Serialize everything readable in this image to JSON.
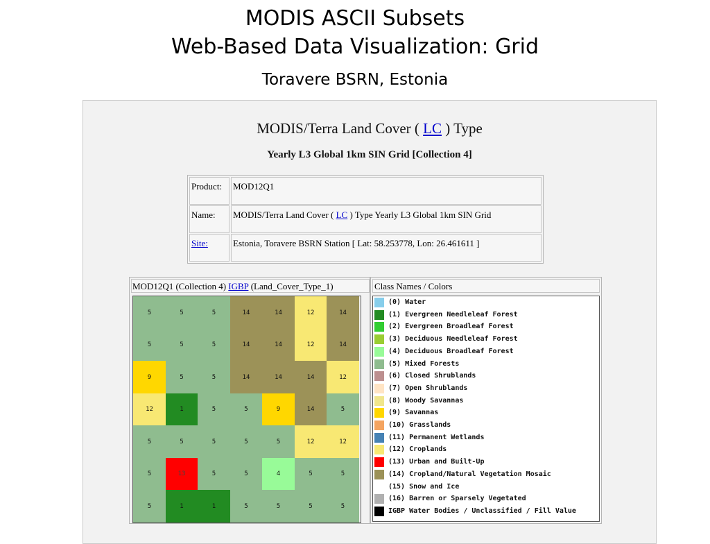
{
  "title_line1": "MODIS ASCII Subsets",
  "title_line2": "Web-Based Data Visualization:  Grid",
  "subtitle": "Toravere BSRN, Estonia",
  "heading": {
    "before": "MODIS/Terra Land Cover ( ",
    "link": "LC",
    "after": " ) Type"
  },
  "subheading": "Yearly L3 Global 1km SIN Grid [Collection 4]",
  "info": {
    "product_key": "Product:",
    "product_val": "MOD12Q1",
    "name_key": "Name:",
    "name_before": "MODIS/Terra Land Cover ( ",
    "name_link": "LC",
    "name_after": " ) Type Yearly L3 Global 1km SIN Grid",
    "site_key": "Site:",
    "site_val": "Estonia, Toravere BSRN Station [ Lat: 58.253778, Lon: 26.461611 ]"
  },
  "grid_header": {
    "before": "MOD12Q1 (Collection 4) ",
    "link": "IGBP",
    "after": " (Land_Cover_Type_1)"
  },
  "legend_header": "Class Names / Colors",
  "classes": [
    {
      "label": "(0) Water",
      "color": "#87ceeb"
    },
    {
      "label": "(1) Evergreen Needleleaf Forest",
      "color": "#228b22"
    },
    {
      "label": "(2) Evergreen Broadleaf Forest",
      "color": "#32cd32"
    },
    {
      "label": "(3) Deciduous Needleleaf Forest",
      "color": "#9acd32"
    },
    {
      "label": "(4) Deciduous Broadleaf Forest",
      "color": "#98fb98"
    },
    {
      "label": "(5) Mixed Forests",
      "color": "#8fbc8f"
    },
    {
      "label": "(6) Closed Shrublands",
      "color": "#bc8f8f"
    },
    {
      "label": "(7) Open Shrublands",
      "color": "#ffe4c4"
    },
    {
      "label": "(8) Woody Savannas",
      "color": "#f0e68c"
    },
    {
      "label": "(9) Savannas",
      "color": "#ffd700"
    },
    {
      "label": "(10) Grasslands",
      "color": "#f4a460"
    },
    {
      "label": "(11) Permanent Wetlands",
      "color": "#4682b4"
    },
    {
      "label": "(12) Croplands",
      "color": "#f8e873"
    },
    {
      "label": "(13) Urban and Built-Up",
      "color": "#ff0000"
    },
    {
      "label": "(14) Cropland/Natural Vegetation Mosaic",
      "color": "#9c9258"
    },
    {
      "label": "(15) Snow and Ice",
      "color": "#ffffff"
    },
    {
      "label": "(16) Barren or Sparsely Vegetated",
      "color": "#b0b0b0"
    },
    {
      "label": "IGBP Water Bodies / Unclassified / Fill Value",
      "color": "#000000"
    }
  ],
  "grid": [
    [
      5,
      5,
      5,
      14,
      14,
      12,
      14
    ],
    [
      5,
      5,
      5,
      14,
      14,
      12,
      14
    ],
    [
      9,
      5,
      5,
      14,
      14,
      14,
      12
    ],
    [
      12,
      1,
      5,
      5,
      9,
      14,
      5
    ],
    [
      5,
      5,
      5,
      5,
      5,
      12,
      12
    ],
    [
      5,
      13,
      5,
      5,
      4,
      5,
      5
    ],
    [
      5,
      1,
      1,
      5,
      5,
      5,
      5
    ]
  ]
}
